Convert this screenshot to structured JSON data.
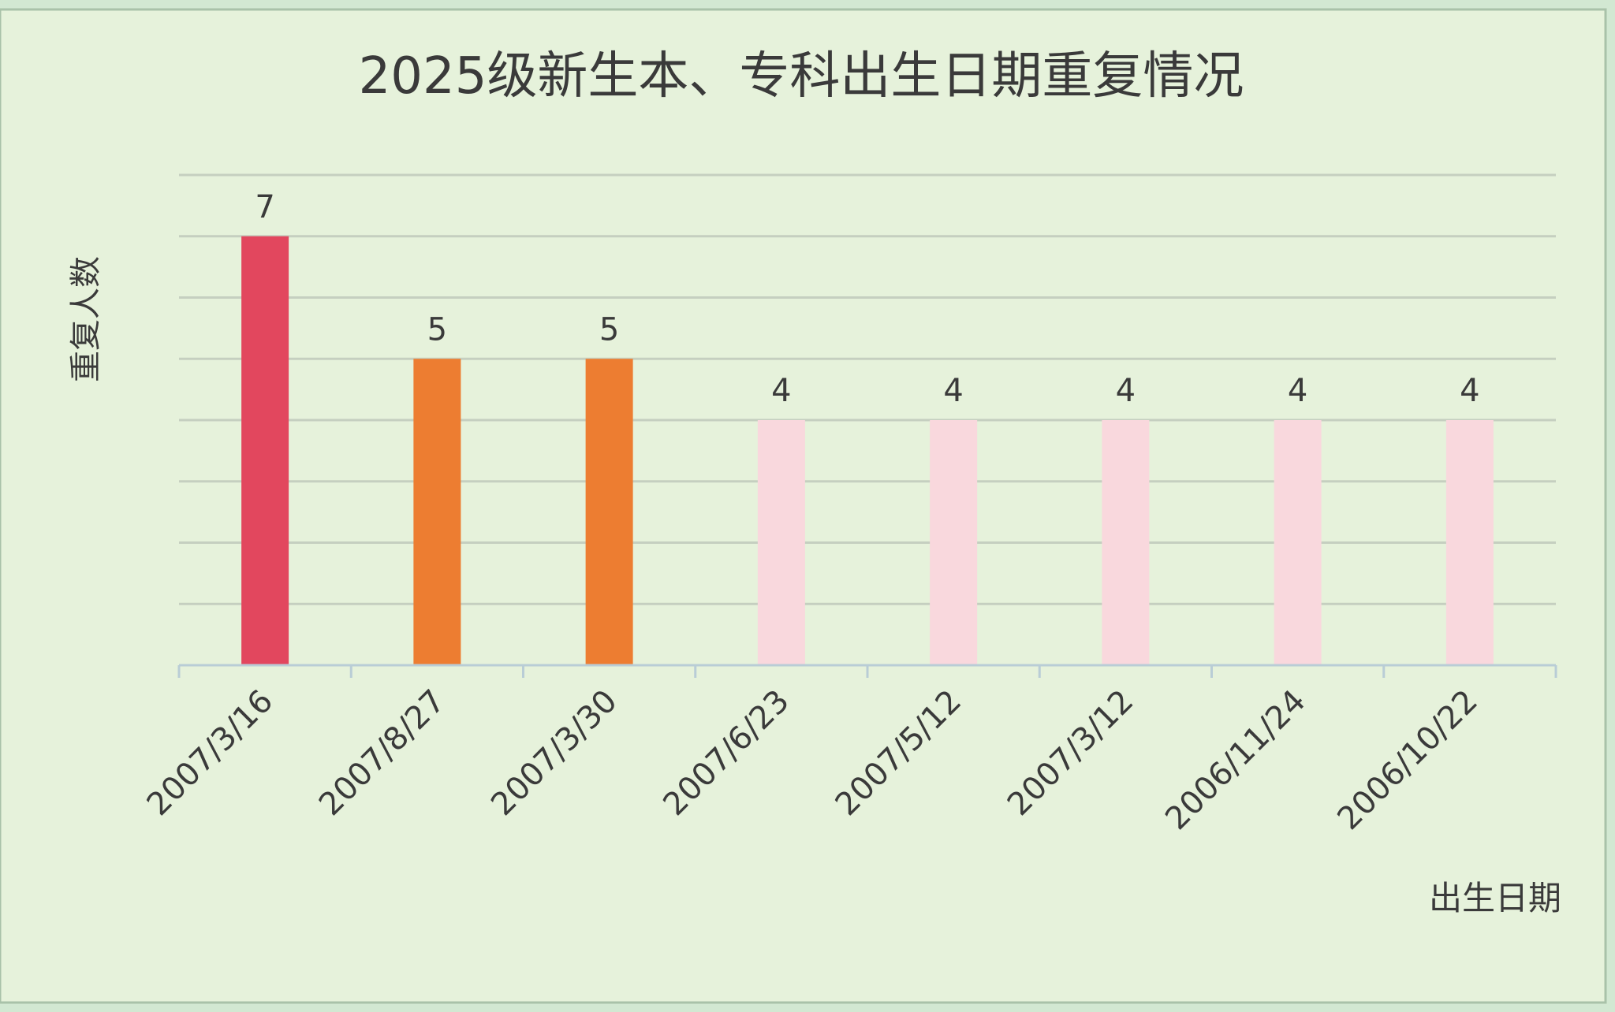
{
  "chart_data": {
    "type": "bar",
    "title": "2025级新生本、专科出生日期重复情况",
    "xlabel": "出生日期",
    "ylabel": "重复人数",
    "categories": [
      "2007/3/16",
      "2007/8/27",
      "2007/3/30",
      "2007/6/23",
      "2007/5/12",
      "2007/3/12",
      "2006/11/24",
      "2006/10/22"
    ],
    "values": [
      7,
      5,
      5,
      4,
      4,
      4,
      4,
      4
    ],
    "ylim": [
      0,
      8
    ],
    "grid": true,
    "y_tick_labels_shown": false,
    "data_labels": true,
    "legend": "none",
    "colors": {
      "7": "#e2475e",
      "5": "#ed7d31",
      "4": "#f9d8dd"
    },
    "background": "#e6f2db"
  }
}
